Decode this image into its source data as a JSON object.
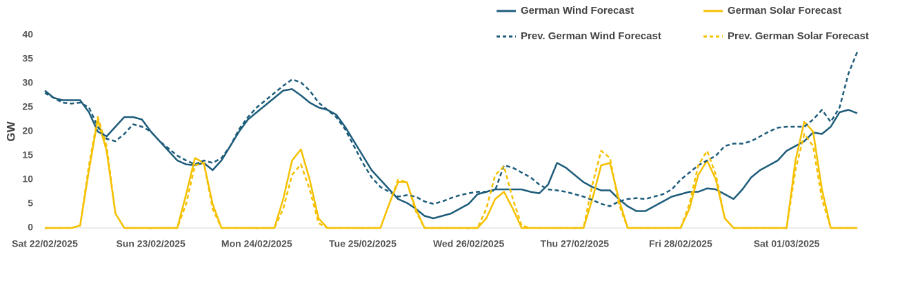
{
  "chart_data": {
    "type": "line",
    "y_label": "GW",
    "x": [
      0,
      2,
      4,
      6,
      8,
      10,
      12,
      14,
      16,
      18,
      20,
      22,
      24,
      26,
      28,
      30,
      32,
      34,
      36,
      38,
      40,
      42,
      44,
      46,
      48,
      50,
      52,
      54,
      56,
      58,
      60,
      62,
      64,
      66,
      68,
      70,
      72,
      74,
      76,
      78,
      80,
      82,
      84,
      86,
      88,
      90,
      92,
      94,
      96,
      98,
      100,
      102,
      104,
      106,
      108,
      110,
      112,
      114,
      116,
      118,
      120,
      122,
      124,
      126,
      128,
      130,
      132,
      134,
      136,
      138,
      140,
      142,
      144,
      146,
      148,
      150,
      152,
      154,
      156,
      158,
      160,
      162,
      164,
      166,
      168,
      170,
      172,
      174,
      176,
      178,
      180,
      182,
      184
    ],
    "xlim": [
      0,
      184
    ],
    "xticks": [
      {
        "value": 0,
        "label": "Sat 22/02/2025"
      },
      {
        "value": 24,
        "label": "Sun 23/02/2025"
      },
      {
        "value": 48,
        "label": "Mon 24/02/2025"
      },
      {
        "value": 72,
        "label": "Tue 25/02/2025"
      },
      {
        "value": 96,
        "label": "Wed 26/02/2025"
      },
      {
        "value": 120,
        "label": "Thu 27/02/2025"
      },
      {
        "value": 144,
        "label": "Fri 28/02/2025"
      },
      {
        "value": 168,
        "label": "Sat 01/03/2025"
      }
    ],
    "ylim": [
      0,
      40
    ],
    "yticks": [
      0,
      5,
      10,
      15,
      20,
      25,
      30,
      35,
      40
    ],
    "grid": false,
    "series": [
      {
        "name": "German Wind Forecast",
        "color": "#1d5c7a",
        "style": "solid",
        "values": [
          28.5,
          27,
          26.5,
          26.5,
          26.5,
          24,
          20,
          19,
          21,
          23,
          23,
          22.5,
          20,
          18,
          16,
          14,
          13.2,
          13,
          13.5,
          12,
          14,
          17,
          20,
          22.5,
          24,
          25.5,
          27,
          28.5,
          28.8,
          27.5,
          26,
          25,
          24.5,
          23.5,
          21,
          18,
          15,
          12,
          10,
          8,
          6,
          5.2,
          4,
          2.5,
          2,
          2.5,
          3,
          4,
          5,
          7,
          7.5,
          8,
          8,
          8,
          8,
          7.5,
          7.2,
          9,
          13.5,
          12.5,
          11,
          9.5,
          8.5,
          7.8,
          7.8,
          6,
          4.5,
          3.5,
          3.5,
          4.5,
          5.5,
          6.5,
          7,
          7.5,
          7.5,
          8.2,
          8,
          7,
          6,
          8,
          10.5,
          12,
          13,
          14,
          16,
          17,
          18,
          19.8,
          19.5,
          21,
          24,
          24.5,
          23.8
        ]
      },
      {
        "name": "German Solar Forecast",
        "color": "#f5c000",
        "style": "solid",
        "values": [
          0,
          0,
          0,
          0,
          0.5,
          12,
          22.5,
          16,
          3,
          0,
          0,
          0,
          0,
          0,
          0,
          0,
          7,
          14.5,
          13.5,
          5,
          0,
          0,
          0,
          0,
          0,
          0,
          0,
          6,
          14,
          16.3,
          10,
          2,
          0,
          0,
          0,
          0,
          0,
          0,
          0,
          5,
          9.5,
          9.5,
          4,
          0,
          0,
          0,
          0,
          0,
          0,
          0,
          2,
          6,
          7.5,
          4,
          0,
          0,
          0,
          0,
          0,
          0,
          0,
          0,
          6,
          13,
          13.5,
          6,
          0,
          0,
          0,
          0,
          0,
          0,
          0,
          4,
          11,
          14,
          10,
          2,
          0,
          0,
          0,
          0,
          0,
          0,
          0,
          14,
          22,
          20,
          8,
          0,
          0,
          0,
          0
        ]
      },
      {
        "name": "Prev. German Wind Forecast",
        "color": "#1d5c7a",
        "style": "dashed",
        "values": [
          28,
          27,
          26,
          25.8,
          26,
          25,
          21,
          18.5,
          18,
          19.5,
          21.5,
          21,
          20,
          18,
          16.5,
          15,
          14,
          13.2,
          14,
          13.5,
          14.5,
          17,
          20.5,
          23,
          25,
          26.5,
          28,
          29.5,
          30.8,
          30.2,
          28.5,
          26,
          24.5,
          23,
          20.5,
          17,
          13.5,
          10.5,
          8.5,
          7.5,
          6.5,
          6.8,
          6.5,
          5.5,
          5,
          5.5,
          6.2,
          6.8,
          7.2,
          7.5,
          7.5,
          7.8,
          13,
          12.5,
          11.5,
          10.5,
          9,
          8,
          7.8,
          7.5,
          7,
          6.5,
          5.8,
          5,
          4.5,
          5.5,
          6,
          6.2,
          6,
          6.5,
          7,
          8,
          10,
          11.5,
          13,
          14,
          15,
          17,
          17.5,
          17.5,
          18,
          19,
          20,
          20.8,
          21,
          21,
          21,
          22.5,
          24.5,
          22,
          25,
          32,
          36.5
        ]
      },
      {
        "name": "Prev. German Solar Forecast",
        "color": "#f5c000",
        "style": "dashed",
        "values": [
          0,
          0,
          0,
          0,
          0.5,
          13,
          23,
          17,
          3,
          0,
          0,
          0,
          0,
          0,
          0,
          0,
          5,
          13,
          13.5,
          4,
          0,
          0,
          0,
          0,
          0,
          0,
          0,
          4,
          11,
          13.2,
          8,
          1,
          0,
          0,
          0,
          0,
          0,
          0,
          0,
          5,
          10,
          9.5,
          3.5,
          0,
          0,
          0,
          0,
          0,
          0,
          0,
          4,
          11,
          12.8,
          6,
          0.5,
          0,
          0,
          0,
          0,
          0,
          0,
          0,
          9,
          16,
          14.5,
          5,
          0,
          0,
          0,
          0,
          0,
          0,
          0,
          5,
          13,
          16,
          11,
          2,
          0,
          0,
          0,
          0,
          0,
          0,
          0,
          12,
          19.5,
          17,
          6,
          0,
          0,
          0,
          0
        ]
      }
    ]
  }
}
